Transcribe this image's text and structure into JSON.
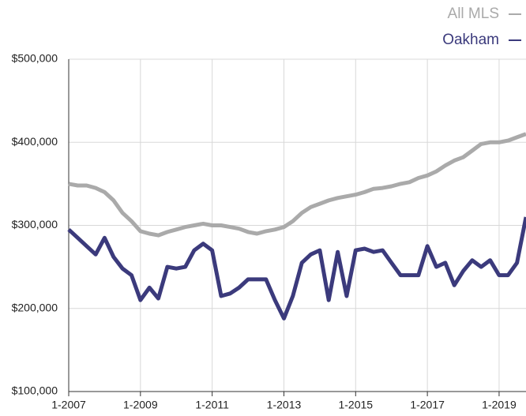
{
  "chart_data": {
    "type": "line",
    "x": [
      "1-2007",
      "4-2007",
      "7-2007",
      "10-2007",
      "1-2008",
      "4-2008",
      "7-2008",
      "10-2008",
      "1-2009",
      "4-2009",
      "7-2009",
      "10-2009",
      "1-2010",
      "4-2010",
      "7-2010",
      "10-2010",
      "1-2011",
      "4-2011",
      "7-2011",
      "10-2011",
      "1-2012",
      "4-2012",
      "7-2012",
      "10-2012",
      "1-2013",
      "4-2013",
      "7-2013",
      "10-2013",
      "1-2014",
      "4-2014",
      "7-2014",
      "10-2014",
      "1-2015",
      "4-2015",
      "7-2015",
      "10-2015",
      "1-2016",
      "4-2016",
      "7-2016",
      "10-2016",
      "1-2017",
      "4-2017",
      "7-2017",
      "10-2017",
      "1-2018",
      "4-2018",
      "7-2018",
      "10-2018",
      "1-2019",
      "4-2019",
      "7-2019",
      "10-2019"
    ],
    "series": [
      {
        "name": "All MLS",
        "color": "#aaaaaa",
        "values": [
          350000,
          348000,
          348000,
          345000,
          340000,
          330000,
          315000,
          305000,
          293000,
          290000,
          288000,
          292000,
          295000,
          298000,
          300000,
          302000,
          300000,
          300000,
          298000,
          296000,
          292000,
          290000,
          293000,
          295000,
          298000,
          305000,
          315000,
          322000,
          326000,
          330000,
          333000,
          335000,
          337000,
          340000,
          344000,
          345000,
          347000,
          350000,
          352000,
          357000,
          360000,
          365000,
          372000,
          378000,
          382000,
          390000,
          398000,
          400000,
          400000,
          402000,
          406000,
          410000
        ]
      },
      {
        "name": "Oakham",
        "color": "#3b3a7c",
        "values": [
          295000,
          285000,
          275000,
          265000,
          285000,
          262000,
          248000,
          240000,
          210000,
          225000,
          212000,
          250000,
          248000,
          250000,
          270000,
          278000,
          270000,
          215000,
          218000,
          225000,
          235000,
          235000,
          235000,
          210000,
          188000,
          215000,
          255000,
          265000,
          270000,
          210000,
          268000,
          215000,
          270000,
          272000,
          268000,
          270000,
          255000,
          240000,
          240000,
          240000,
          275000,
          250000,
          255000,
          228000,
          245000,
          258000,
          250000,
          258000,
          240000,
          240000,
          255000,
          310000
        ]
      }
    ],
    "xlim": [
      "1-2007",
      "10-2019"
    ],
    "xticks": [
      "1-2007",
      "1-2009",
      "1-2011",
      "1-2013",
      "1-2015",
      "1-2017",
      "1-2019"
    ],
    "ylim": [
      100000,
      500000
    ],
    "yticks": [
      {
        "value": 100000,
        "label": "$100,000"
      },
      {
        "value": 200000,
        "label": "$200,000"
      },
      {
        "value": 300000,
        "label": "$300,000"
      },
      {
        "value": 400000,
        "label": "$400,000"
      },
      {
        "value": 500000,
        "label": "$500,000"
      }
    ],
    "grid": true
  }
}
